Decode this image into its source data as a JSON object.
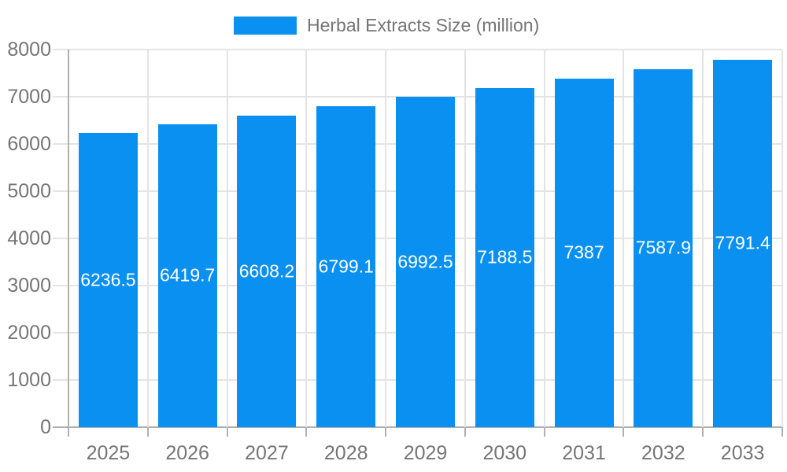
{
  "chart_data": {
    "type": "bar",
    "title": "",
    "legend": "Herbal Extracts Size (million)",
    "legend_position": "top",
    "categories": [
      "2025",
      "2026",
      "2027",
      "2028",
      "2029",
      "2030",
      "2031",
      "2032",
      "2033"
    ],
    "values": [
      6236.5,
      6419.7,
      6608.2,
      6799.1,
      6992.5,
      7188.5,
      7387,
      7587.9,
      7791.4
    ],
    "value_labels": [
      "6236.5",
      "6419.7",
      "6608.2",
      "6799.1",
      "6992.5",
      "7188.5",
      "7387",
      "7587.9",
      "7791.4"
    ],
    "xlabel": "",
    "ylabel": "",
    "ylim": [
      0,
      8000
    ],
    "ytick_step": 1000,
    "ytick_labels": [
      "0",
      "1000",
      "2000",
      "3000",
      "4000",
      "5000",
      "6000",
      "7000",
      "8000"
    ],
    "grid": "both",
    "colors": {
      "bar": "#0a90f1",
      "value_label": "#ffffff",
      "axis_text": "#757575",
      "legend_text": "#757575",
      "gridline": "#e4e4e4",
      "axis_line": "#b0b0b0",
      "background": "#ffffff"
    }
  }
}
